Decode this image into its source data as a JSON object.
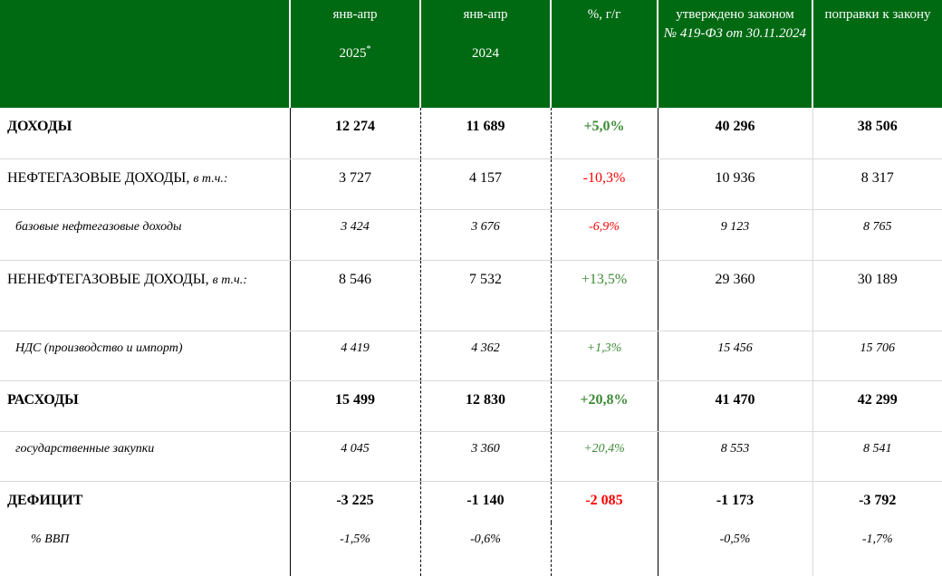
{
  "header": {
    "col0": "",
    "col1_line1": "янв-апр",
    "col1_line2": "2025",
    "col1_mark": "*",
    "col2_line1": "янв-апр",
    "col2_line2": "2024",
    "col3": "%, г/г",
    "col4_line1": "утверждено законом",
    "col4_line2": "№ 419-ФЗ от 30.11.2024",
    "col5": "поправки к закону"
  },
  "rows": [
    {
      "label": "ДОХОДЫ",
      "label_suffix": "",
      "v2025": "12 274",
      "v2024": "11 689",
      "yoy": "+5,0%",
      "law": "40 296",
      "amend": "38 506"
    },
    {
      "label": "НЕФТЕГАЗОВЫЕ ДОХОДЫ,",
      "label_suffix": "в т.ч.:",
      "v2025": "3 727",
      "v2024": "4 157",
      "yoy": "-10,3%",
      "law": "10 936",
      "amend": "8 317"
    },
    {
      "label": "базовые нефтегазовые доходы",
      "label_suffix": "",
      "v2025": "3 424",
      "v2024": "3 676",
      "yoy": "-6,9%",
      "law": "9 123",
      "amend": "8 765"
    },
    {
      "label": "НЕНЕФТЕГАЗОВЫЕ ДОХОДЫ,",
      "label_suffix": "в т.ч.:",
      "v2025": "8 546",
      "v2024": "7 532",
      "yoy": "+13,5%",
      "law": "29 360",
      "amend": "30 189"
    },
    {
      "label": "НДС (производство и импорт)",
      "label_suffix": "",
      "v2025": "4 419",
      "v2024": "4 362",
      "yoy": "+1,3%",
      "law": "15 456",
      "amend": "15 706"
    },
    {
      "label": "РАСХОДЫ",
      "label_suffix": "",
      "v2025": "15 499",
      "v2024": "12 830",
      "yoy": "+20,8%",
      "law": "41 470",
      "amend": "42 299"
    },
    {
      "label": "государственные закупки",
      "label_suffix": "",
      "v2025": "4 045",
      "v2024": "3 360",
      "yoy": "+20,4%",
      "law": "8 553",
      "amend": "8 541"
    },
    {
      "label": "ДЕФИЦИТ",
      "label_suffix": "",
      "v2025": "-3 225",
      "v2024": "-1 140",
      "yoy": "-2 085",
      "law": "-1 173",
      "amend": "-3 792"
    },
    {
      "label": "% ВВП",
      "label_suffix": "",
      "v2025": "-1,5%",
      "v2024": "-0,6%",
      "yoy": "",
      "law": "-0,5%",
      "amend": "-1,7%"
    }
  ],
  "colors": {
    "header_bg": "#006a13",
    "positive": "#3c8a35",
    "negative": "#ff0000"
  }
}
